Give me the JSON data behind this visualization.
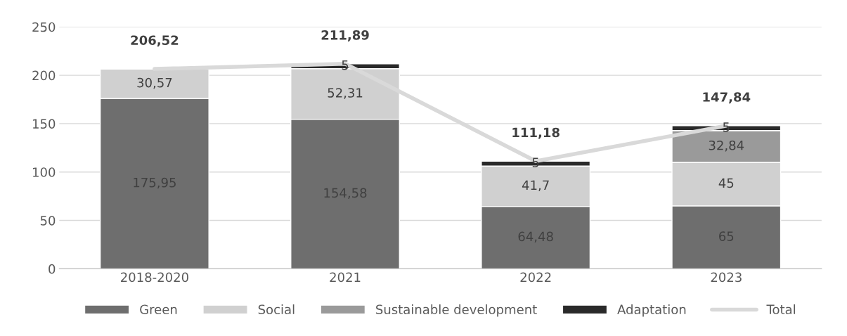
{
  "chart_data": {
    "type": "bar",
    "stacked": true,
    "categories": [
      "2018-2020",
      "2021",
      "2022",
      "2023"
    ],
    "series": [
      {
        "name": "Green",
        "color": "#6e6e6e",
        "values": [
          175.95,
          154.58,
          64.48,
          65
        ],
        "value_labels": [
          "175,95",
          "154,58",
          "64,48",
          "65"
        ]
      },
      {
        "name": "Social",
        "color": "#d0d0d0",
        "values": [
          30.57,
          52.31,
          41.7,
          45
        ],
        "value_labels": [
          "30,57",
          "52,31",
          "41,7",
          "45"
        ]
      },
      {
        "name": "Sustainable development",
        "color": "#9a9a9a",
        "values": [
          null,
          null,
          null,
          32.84
        ],
        "value_labels": [
          null,
          null,
          null,
          "32,84"
        ]
      },
      {
        "name": "Adaptation",
        "color": "#2a2a2a",
        "values": [
          null,
          5,
          5,
          5
        ],
        "value_labels": [
          null,
          "5",
          "5",
          "5"
        ]
      },
      {
        "name": "Total",
        "type": "line",
        "color": "#d9d9d9",
        "values": [
          206.52,
          211.89,
          111.18,
          147.84
        ],
        "value_labels": [
          "206,52",
          "211,89",
          "111,18",
          "147,84"
        ]
      }
    ],
    "ylim": [
      0,
      250
    ],
    "yticks": [
      0,
      50,
      100,
      150,
      200,
      250
    ],
    "grid": "y",
    "legend": "bottom",
    "marker": "none",
    "line_style": "solid"
  }
}
